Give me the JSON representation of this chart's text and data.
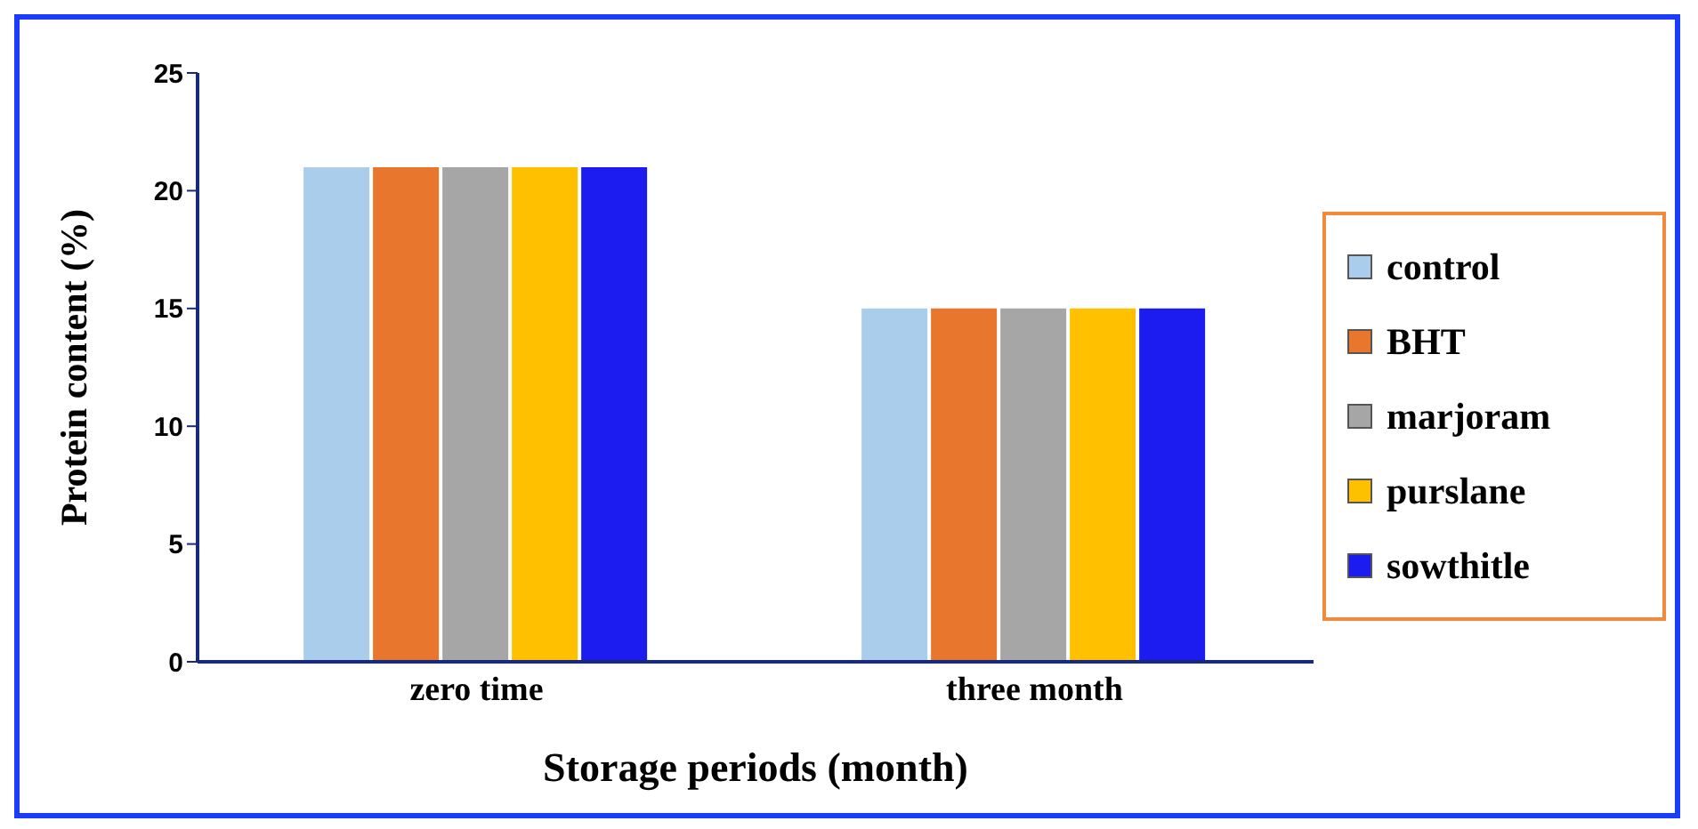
{
  "chart_data": {
    "type": "bar",
    "xlabel": "Storage periods (month)",
    "ylabel": "Protein content (%)",
    "categories": [
      "zero time",
      "three month"
    ],
    "series": [
      {
        "name": "control",
        "color": "#a9cdea",
        "values": [
          21,
          15
        ]
      },
      {
        "name": "BHT",
        "color": "#e8762c",
        "values": [
          21,
          15
        ]
      },
      {
        "name": "marjoram",
        "color": "#a6a6a6",
        "values": [
          21,
          15
        ]
      },
      {
        "name": "purslane",
        "color": "#ffc000",
        "values": [
          21,
          15
        ]
      },
      {
        "name": "sowthitle",
        "color": "#1c1cf0",
        "values": [
          21,
          15
        ]
      }
    ],
    "ylim": [
      0,
      25
    ],
    "yticks": [
      0,
      5,
      10,
      15,
      20,
      25
    ],
    "legend": "right"
  }
}
